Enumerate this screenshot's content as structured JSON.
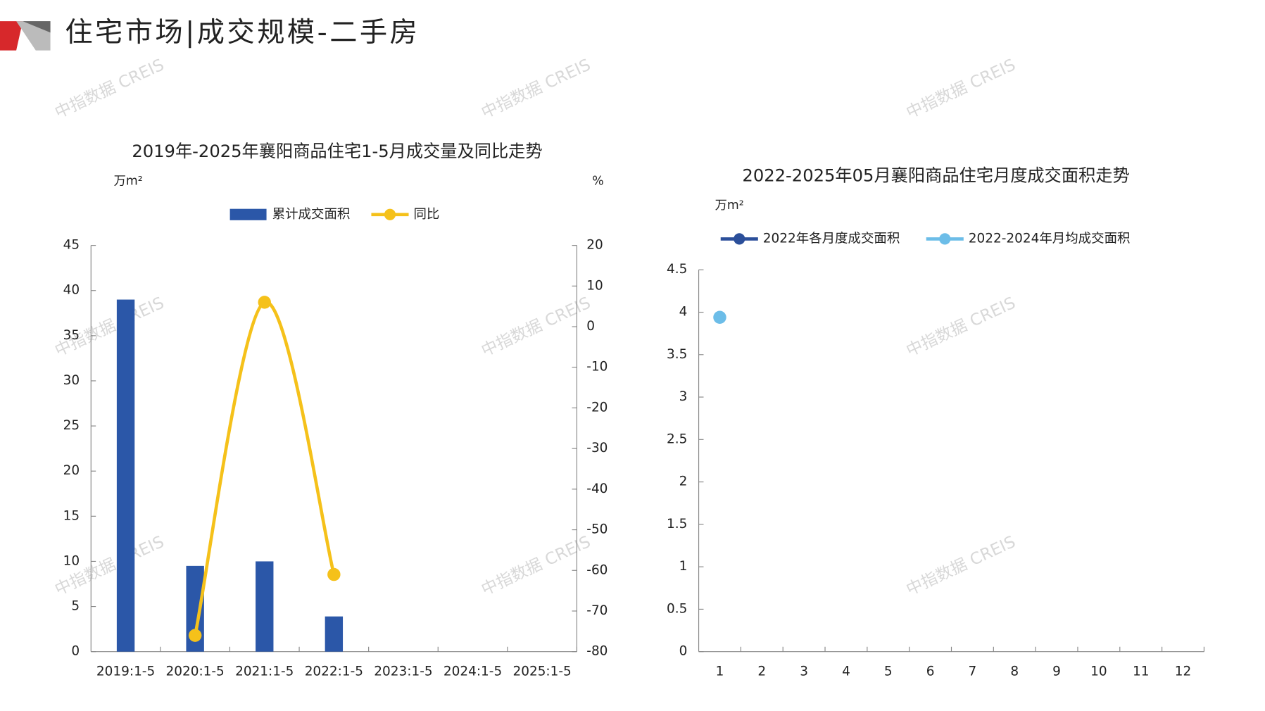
{
  "header": {
    "title": "住宅市场|成交规模-二手房"
  },
  "watermark": "中指数据 CREIS",
  "chart_data": [
    {
      "type": "bar-line",
      "title": "2019年-2025年襄阳商品住宅1-5月成交量及同比走势",
      "y_unit": "万m²",
      "y2_unit": "%",
      "categories": [
        "2019:1-5",
        "2020:1-5",
        "2021:1-5",
        "2022:1-5",
        "2023:1-5",
        "2024:1-5",
        "2025:1-5"
      ],
      "series": [
        {
          "name": "累计成交面积",
          "type": "bar",
          "color": "#2b57a8",
          "values": [
            39,
            9.5,
            10,
            3.9,
            null,
            null,
            null
          ]
        },
        {
          "name": "同比",
          "type": "line",
          "axis": "y2",
          "color": "#f5c11a",
          "values": [
            null,
            -76,
            6,
            -61,
            null,
            null,
            null
          ]
        }
      ],
      "ylim": [
        0,
        45
      ],
      "yticks": [
        0,
        5,
        10,
        15,
        20,
        25,
        30,
        35,
        40,
        45
      ],
      "y2lim": [
        -80,
        20
      ],
      "y2ticks": [
        -80,
        -70,
        -60,
        -50,
        -40,
        -30,
        -20,
        -10,
        0,
        10,
        20
      ]
    },
    {
      "type": "line",
      "title": "2022-2025年05月襄阳商品住宅月度成交面积走势",
      "y_unit": "万m²",
      "categories": [
        "1",
        "2",
        "3",
        "4",
        "5",
        "6",
        "7",
        "8",
        "9",
        "10",
        "11",
        "12"
      ],
      "series": [
        {
          "name": "2022年各月度成交面积",
          "color": "#2b4f9a",
          "values": [
            null,
            null,
            null,
            null,
            null,
            null,
            null,
            null,
            null,
            null,
            null,
            null
          ]
        },
        {
          "name": "2022-2024年月均成交面积",
          "color": "#6cbde8",
          "values": [
            3.94,
            null,
            null,
            null,
            null,
            null,
            null,
            null,
            null,
            null,
            null,
            null
          ]
        }
      ],
      "ylim": [
        0,
        4.5
      ],
      "yticks": [
        0,
        0.5,
        1,
        1.5,
        2,
        2.5,
        3,
        3.5,
        4,
        4.5
      ]
    }
  ]
}
